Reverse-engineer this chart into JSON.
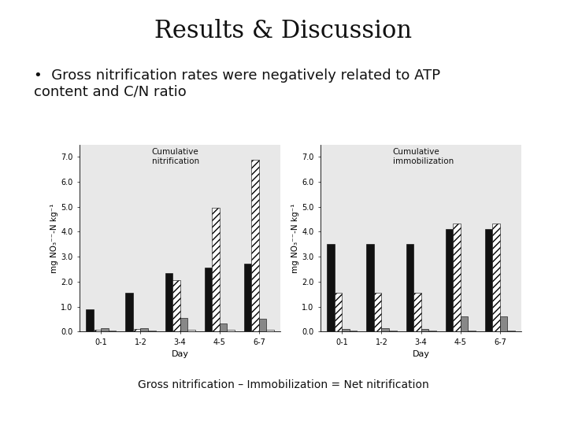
{
  "title": "Results & Discussion",
  "title_bg_color": "#b5c985",
  "title_font_size": 22,
  "body_bg_color": "#ffffff",
  "bullet_text": "Gross nitrification rates were negatively related to ATP\ncontent and C/N ratio",
  "bullet_font_size": 13,
  "footer_text": "Gross nitrification – Immobilization = Net nitrification",
  "footer_font_size": 10,
  "days": [
    "0-1",
    "1-2",
    "3-4",
    "4-5",
    "6-7"
  ],
  "nitrif_black": [
    0.88,
    1.55,
    2.35,
    2.55,
    2.72
  ],
  "nitrif_hatch": [
    0.08,
    0.1,
    2.05,
    4.95,
    6.9
  ],
  "nitrif_gray": [
    0.12,
    0.12,
    0.55,
    0.32,
    0.52
  ],
  "nitrif_white": [
    0.04,
    0.04,
    0.08,
    0.08,
    0.08
  ],
  "immob_black": [
    3.52,
    3.52,
    3.52,
    4.1,
    4.1
  ],
  "immob_hatch": [
    1.55,
    1.55,
    1.55,
    4.32,
    4.32
  ],
  "immob_gray": [
    0.1,
    0.12,
    0.1,
    0.6,
    0.6
  ],
  "immob_white": [
    0.04,
    0.04,
    0.04,
    0.04,
    0.04
  ],
  "ylabel": "mg NO₃⁻⁻-N kg⁻¹",
  "xlabel": "Day",
  "ylim": [
    0,
    7.5
  ],
  "yticks": [
    0.0,
    1.0,
    2.0,
    3.0,
    4.0,
    5.0,
    6.0,
    7.0
  ],
  "nitrif_label": "Cumulative\nnitrification",
  "immob_label": "Cumulative\nimmobilization",
  "chart_bg": "#e8e8e8",
  "color_black": "#111111",
  "color_gray": "#888888",
  "color_white": "#ffffff"
}
